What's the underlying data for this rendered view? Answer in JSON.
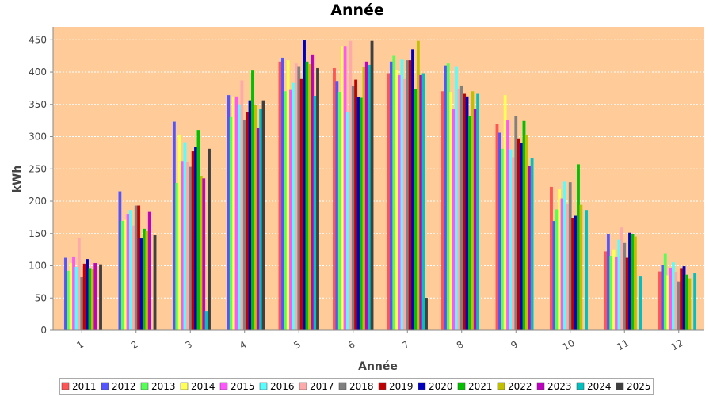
{
  "colors": {
    "plot_background": "#ffcc99",
    "gridline": "#ffffff",
    "axis": "#888888"
  },
  "chart_data": {
    "type": "bar",
    "title": "Année",
    "xlabel": "Année",
    "ylabel": "kWh",
    "ylim": [
      0,
      470
    ],
    "yticks": [
      0,
      50,
      100,
      150,
      200,
      250,
      300,
      350,
      400,
      450
    ],
    "grid": true,
    "legend_position": "bottom",
    "categories": [
      "1",
      "2",
      "3",
      "4",
      "5",
      "6",
      "7",
      "8",
      "9",
      "10",
      "11",
      "12"
    ],
    "series": [
      {
        "name": "2011",
        "color": "#ff5555",
        "values": [
          0,
          0,
          0,
          0,
          416,
          406,
          398,
          370,
          320,
          222,
          122,
          91
        ]
      },
      {
        "name": "2012",
        "color": "#5555ff",
        "values": [
          112,
          215,
          323,
          364,
          422,
          386,
          416,
          410,
          306,
          169,
          149,
          101
        ]
      },
      {
        "name": "2013",
        "color": "#55ff55",
        "values": [
          92,
          169,
          228,
          330,
          370,
          369,
          425,
          413,
          281,
          187,
          115,
          118
        ]
      },
      {
        "name": "2014",
        "color": "#ffff55",
        "values": [
          104,
          171,
          303,
          362,
          418,
          440,
          403,
          369,
          364,
          218,
          124,
          85
        ]
      },
      {
        "name": "2015",
        "color": "#ff55ff",
        "values": [
          114,
          180,
          262,
          362,
          372,
          440,
          395,
          343,
          325,
          204,
          114,
          96
        ]
      },
      {
        "name": "2016",
        "color": "#55ffff",
        "values": [
          98,
          186,
          291,
          350,
          383,
          338,
          419,
          409,
          280,
          230,
          140,
          105
        ]
      },
      {
        "name": "2017",
        "color": "#ffaaaa",
        "values": [
          142,
          162,
          261,
          387,
          413,
          448,
          389,
          374,
          268,
          196,
          159,
          90
        ]
      },
      {
        "name": "2018",
        "color": "#808080",
        "values": [
          82,
          193,
          253,
          326,
          409,
          379,
          418,
          379,
          332,
          229,
          135,
          75
        ]
      },
      {
        "name": "2019",
        "color": "#c00000",
        "values": [
          103,
          193,
          277,
          338,
          389,
          388,
          418,
          366,
          297,
          174,
          112,
          95
        ]
      },
      {
        "name": "2020",
        "color": "#0000c0",
        "values": [
          110,
          142,
          284,
          356,
          449,
          361,
          435,
          362,
          290,
          177,
          151,
          99
        ]
      },
      {
        "name": "2021",
        "color": "#00c000",
        "values": [
          95,
          157,
          310,
          402,
          416,
          360,
          374,
          332,
          324,
          257,
          149,
          86
        ]
      },
      {
        "name": "2022",
        "color": "#c0c000",
        "values": [
          94,
          153,
          239,
          349,
          412,
          408,
          448,
          370,
          302,
          194,
          145,
          80
        ]
      },
      {
        "name": "2023",
        "color": "#c000c0",
        "values": [
          104,
          183,
          235,
          313,
          427,
          416,
          395,
          343,
          255,
          0,
          0,
          0
        ]
      },
      {
        "name": "2024",
        "color": "#00c0c0",
        "values": [
          0,
          0,
          29,
          343,
          363,
          411,
          398,
          366,
          266,
          186,
          83,
          88
        ]
      },
      {
        "name": "2025",
        "color": "#404040",
        "values": [
          102,
          147,
          281,
          356,
          406,
          448,
          50,
          0,
          0,
          0,
          0,
          0
        ]
      }
    ]
  }
}
